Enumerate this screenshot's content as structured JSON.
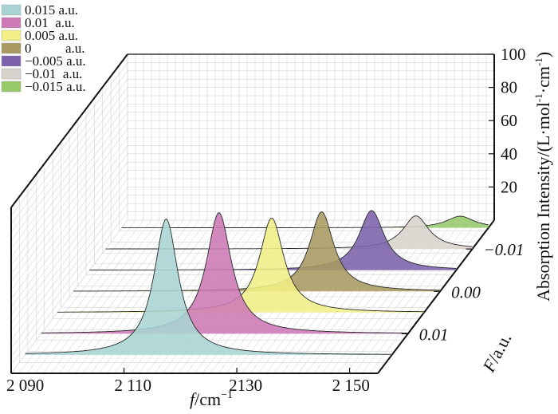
{
  "chart_data": {
    "type": "line",
    "subtype": "3d-waterfall-area",
    "x_axis": {
      "label_italic": "f",
      "label_unit": "/cm",
      "label_sup": "−1",
      "ticks": [
        "2 090",
        "2 110",
        "2130",
        "2 150"
      ],
      "tick_values": [
        2090,
        2110,
        2130,
        2150
      ],
      "range": [
        2090,
        2155
      ]
    },
    "y_axis": {
      "label_italic": "F",
      "label_unit": "/a.u.",
      "ticks": [
        "0.01",
        "0.00",
        "−0.01"
      ],
      "tick_values": [
        0.01,
        0.0,
        -0.01
      ]
    },
    "z_axis": {
      "label": "Absorption Intensity/(L·mol",
      "label_sup1": "-1",
      "label_mid": "·cm",
      "label_sup2": "-1",
      "label_end": ")",
      "ticks": [
        "20",
        "40",
        "60",
        "80",
        "100"
      ],
      "tick_values": [
        20,
        40,
        60,
        80,
        100
      ],
      "range": [
        0,
        100
      ]
    },
    "grid": true,
    "legend_position": "top-left",
    "series": [
      {
        "name": "0.015 a.u.",
        "field": 0.015,
        "center": 2115.0,
        "peak": 82,
        "width": 2.6,
        "color": "#a8d5d3"
      },
      {
        "name": "0.01  a.u.",
        "field": 0.01,
        "center": 2121.5,
        "peak": 73,
        "width": 2.7,
        "color": "#cc79b5"
      },
      {
        "name": "0.005 a.u.",
        "field": 0.005,
        "center": 2128.0,
        "peak": 57,
        "width": 2.6,
        "color": "#f1ef86"
      },
      {
        "name": "0          a.u.",
        "field": 0.0,
        "center": 2134.0,
        "peak": 48,
        "width": 2.6,
        "color": "#a89a62"
      },
      {
        "name": "−0.005 a.u.",
        "field": -0.005,
        "center": 2140.0,
        "peak": 36,
        "width": 2.7,
        "color": "#7c62ab"
      },
      {
        "name": "−0.01  a.u.",
        "field": -0.01,
        "center": 2145.0,
        "peak": 20,
        "width": 2.8,
        "color": "#d9d3cd"
      },
      {
        "name": "−0.015 a.u.",
        "field": -0.015,
        "center": 2150.0,
        "peak": 7,
        "width": 3.0,
        "color": "#96c96a"
      }
    ]
  }
}
